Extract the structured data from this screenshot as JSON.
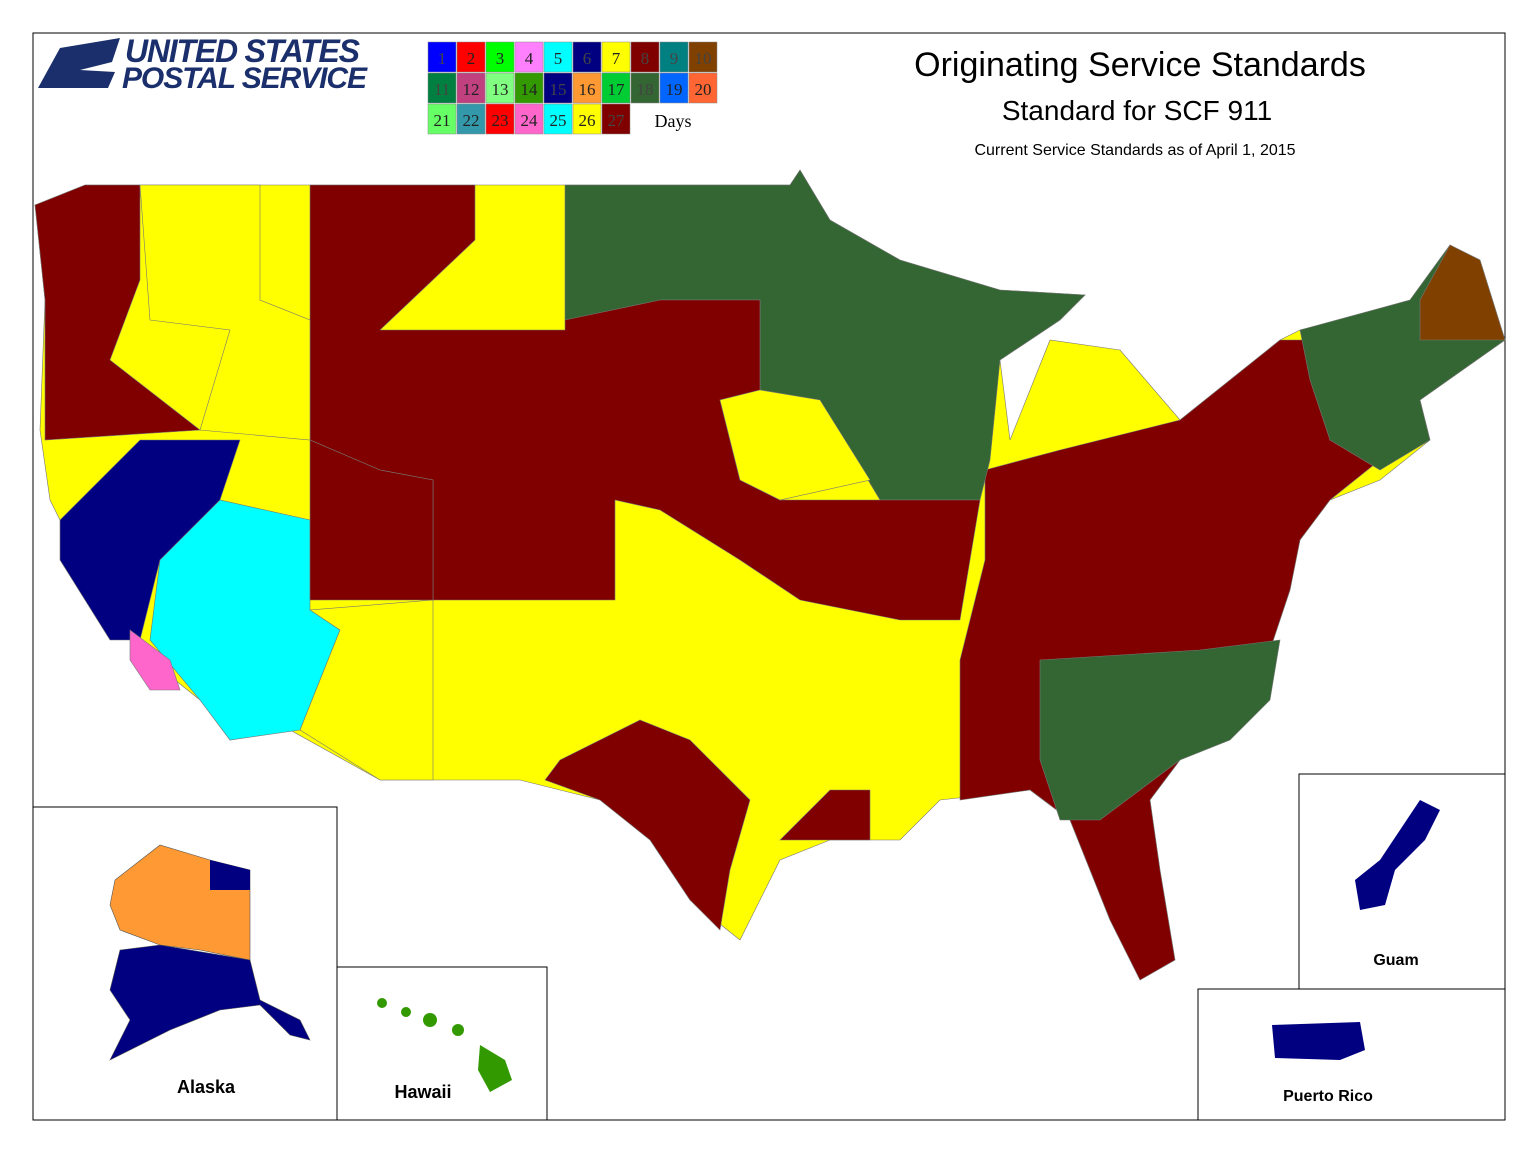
{
  "logo": {
    "line1": "UNITED STATES",
    "line2": "POSTAL SERVICE"
  },
  "title": "Originating Service Standards",
  "subtitle": "Standard for SCF 911",
  "note": "Current Service Standards as of April 1, 2015",
  "legend": {
    "unit": "Days",
    "items": [
      {
        "day": 1,
        "color": "#0000ff"
      },
      {
        "day": 2,
        "color": "#ff0000"
      },
      {
        "day": 3,
        "color": "#00ff00"
      },
      {
        "day": 4,
        "color": "#ff80ff"
      },
      {
        "day": 5,
        "color": "#00ffff"
      },
      {
        "day": 6,
        "color": "#000080"
      },
      {
        "day": 7,
        "color": "#ffff00"
      },
      {
        "day": 8,
        "color": "#800000"
      },
      {
        "day": 9,
        "color": "#008080"
      },
      {
        "day": 10,
        "color": "#804000"
      },
      {
        "day": 11,
        "color": "#008040"
      },
      {
        "day": 12,
        "color": "#c04080"
      },
      {
        "day": 13,
        "color": "#80ff80"
      },
      {
        "day": 14,
        "color": "#339900"
      },
      {
        "day": 15,
        "color": "#000080"
      },
      {
        "day": 16,
        "color": "#ff9933"
      },
      {
        "day": 17,
        "color": "#00cc33"
      },
      {
        "day": 18,
        "color": "#336633"
      },
      {
        "day": 19,
        "color": "#0066ff"
      },
      {
        "day": 20,
        "color": "#ff6633"
      },
      {
        "day": 21,
        "color": "#66ff66"
      },
      {
        "day": 22,
        "color": "#3399aa"
      },
      {
        "day": 23,
        "color": "#ff0000"
      },
      {
        "day": 24,
        "color": "#ff66cc"
      },
      {
        "day": 25,
        "color": "#00ffff"
      },
      {
        "day": 26,
        "color": "#ffff00"
      },
      {
        "day": 27,
        "color": "#800000"
      }
    ]
  },
  "insets": {
    "alaska": "Alaska",
    "hawaii": "Hawaii",
    "guam": "Guam",
    "puerto_rico": "Puerto Rico"
  }
}
